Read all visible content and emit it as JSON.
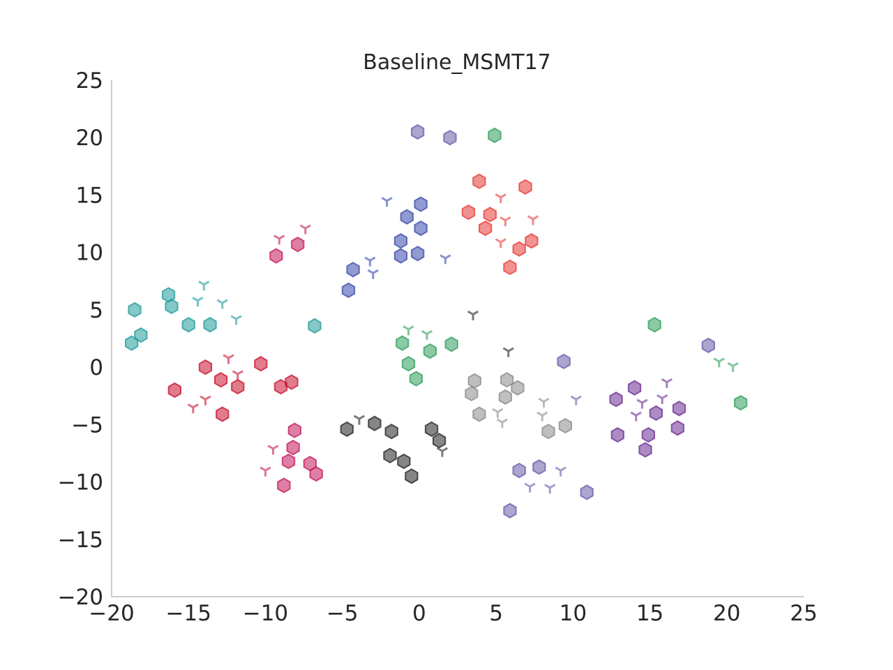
{
  "chart_data": {
    "type": "scatter",
    "title": "Baseline_MSMT17",
    "xlabel": "",
    "ylabel": "",
    "xlim": [
      -20,
      25
    ],
    "ylim": [
      -20,
      25
    ],
    "xticks": [
      "−20",
      "−15",
      "−10",
      "−5",
      "0",
      "5",
      "10",
      "15",
      "20",
      "25"
    ],
    "xtick_values": [
      -20,
      -15,
      -10,
      -5,
      0,
      5,
      10,
      15,
      20,
      25
    ],
    "yticks": [
      "25",
      "20",
      "15",
      "10",
      "5",
      "0",
      "−5",
      "−10",
      "−15",
      "−20"
    ],
    "ytick_values": [
      25,
      20,
      15,
      10,
      5,
      0,
      -5,
      -10,
      -15,
      -20
    ],
    "grid": false,
    "legend": "none",
    "marker_legend": {
      "hexagon": "hexagon marker",
      "tri": "tri_down marker"
    },
    "groups": [
      {
        "color": "#1f9a9a",
        "marker": "hexagon",
        "points": [
          [
            -18.5,
            5.0
          ],
          [
            -18.7,
            2.1
          ],
          [
            -18.1,
            2.8
          ],
          [
            -16.3,
            6.3
          ],
          [
            -16.1,
            5.3
          ],
          [
            -15.0,
            3.7
          ],
          [
            -13.6,
            3.7
          ],
          [
            -6.8,
            3.6
          ]
        ]
      },
      {
        "color": "#1f9a9a",
        "marker": "tri",
        "points": [
          [
            -14.0,
            7.2
          ],
          [
            -14.4,
            5.8
          ],
          [
            -12.8,
            5.6
          ],
          [
            -11.9,
            4.2
          ]
        ]
      },
      {
        "color": "#c8102e",
        "marker": "hexagon",
        "points": [
          [
            -15.9,
            -2.0
          ],
          [
            -13.9,
            0.0
          ],
          [
            -12.9,
            -1.1
          ],
          [
            -11.8,
            -1.7
          ],
          [
            -12.8,
            -4.1
          ],
          [
            -10.3,
            0.3
          ],
          [
            -9.0,
            -1.7
          ],
          [
            -8.3,
            -1.3
          ]
        ]
      },
      {
        "color": "#c8102e",
        "marker": "tri",
        "points": [
          [
            -12.4,
            0.8
          ],
          [
            -11.8,
            -0.6
          ],
          [
            -14.7,
            -3.5
          ],
          [
            -13.9,
            -2.8
          ]
        ]
      },
      {
        "color": "#c2185b",
        "marker": "hexagon",
        "points": [
          [
            -9.3,
            9.7
          ],
          [
            -7.9,
            10.7
          ],
          [
            -8.1,
            -5.5
          ],
          [
            -8.2,
            -7.0
          ],
          [
            -8.5,
            -8.2
          ],
          [
            -7.1,
            -8.4
          ],
          [
            -6.7,
            -9.3
          ],
          [
            -8.8,
            -10.3
          ]
        ]
      },
      {
        "color": "#c2185b",
        "marker": "tri",
        "points": [
          [
            -9.1,
            11.2
          ],
          [
            -7.4,
            12.1
          ],
          [
            -9.5,
            -7.1
          ],
          [
            -10.0,
            -9.0
          ]
        ]
      },
      {
        "color": "#3949ab",
        "marker": "hexagon",
        "points": [
          [
            0.1,
            14.2
          ],
          [
            -0.8,
            13.1
          ],
          [
            0.1,
            12.1
          ],
          [
            -1.2,
            11.0
          ],
          [
            -1.2,
            9.7
          ],
          [
            -0.1,
            9.9
          ],
          [
            -4.3,
            8.5
          ],
          [
            -4.6,
            6.7
          ]
        ]
      },
      {
        "color": "#3949ab",
        "marker": "tri",
        "points": [
          [
            -2.1,
            14.5
          ],
          [
            -3.2,
            9.3
          ],
          [
            -3.0,
            8.2
          ],
          [
            1.7,
            9.5
          ]
        ]
      },
      {
        "color": "#e53935",
        "marker": "hexagon",
        "points": [
          [
            3.9,
            16.2
          ],
          [
            6.9,
            15.7
          ],
          [
            3.2,
            13.5
          ],
          [
            4.6,
            13.3
          ],
          [
            4.3,
            12.1
          ],
          [
            6.5,
            10.3
          ],
          [
            7.3,
            11.0
          ],
          [
            5.9,
            8.7
          ]
        ]
      },
      {
        "color": "#e53935",
        "marker": "tri",
        "points": [
          [
            5.3,
            14.8
          ],
          [
            5.6,
            12.8
          ],
          [
            7.4,
            12.9
          ],
          [
            5.3,
            10.9
          ]
        ]
      },
      {
        "color": "#2e9e5b",
        "marker": "hexagon",
        "points": [
          [
            4.9,
            20.2
          ],
          [
            -1.1,
            2.1
          ],
          [
            0.7,
            1.4
          ],
          [
            2.1,
            2.0
          ],
          [
            -0.7,
            0.3
          ],
          [
            -0.2,
            -1.0
          ],
          [
            15.3,
            3.7
          ],
          [
            20.9,
            -3.1
          ]
        ]
      },
      {
        "color": "#2e9e5b",
        "marker": "tri",
        "points": [
          [
            -0.7,
            3.3
          ],
          [
            0.5,
            2.9
          ],
          [
            19.5,
            0.5
          ],
          [
            20.4,
            0.1
          ]
        ]
      },
      {
        "color": "#6a5aa8",
        "marker": "hexagon",
        "points": [
          [
            -0.1,
            20.5
          ],
          [
            2.0,
            20.0
          ],
          [
            9.4,
            0.5
          ],
          [
            18.8,
            1.9
          ],
          [
            6.5,
            -9.0
          ],
          [
            7.8,
            -8.7
          ],
          [
            10.9,
            -10.9
          ],
          [
            5.9,
            -12.5
          ]
        ]
      },
      {
        "color": "#6a5aa8",
        "marker": "tri",
        "points": [
          [
            9.2,
            -9.0
          ],
          [
            7.2,
            -10.4
          ],
          [
            8.5,
            -10.5
          ],
          [
            10.2,
            -2.8
          ]
        ]
      },
      {
        "color": "#222222",
        "marker": "hexagon",
        "points": [
          [
            -4.7,
            -5.4
          ],
          [
            -2.9,
            -4.9
          ],
          [
            -1.8,
            -5.6
          ],
          [
            0.8,
            -5.4
          ],
          [
            1.3,
            -6.4
          ],
          [
            -1.9,
            -7.7
          ],
          [
            -1.0,
            -8.2
          ],
          [
            -0.5,
            -9.5
          ]
        ]
      },
      {
        "color": "#222222",
        "marker": "tri",
        "points": [
          [
            -3.9,
            -4.5
          ],
          [
            1.5,
            -7.3
          ],
          [
            3.5,
            4.6
          ],
          [
            5.8,
            1.4
          ]
        ]
      },
      {
        "color": "#8a8a8a",
        "marker": "hexagon",
        "points": [
          [
            3.6,
            -1.2
          ],
          [
            3.4,
            -2.3
          ],
          [
            3.9,
            -4.1
          ],
          [
            5.7,
            -1.1
          ],
          [
            6.4,
            -1.8
          ],
          [
            5.6,
            -2.6
          ],
          [
            8.4,
            -5.6
          ],
          [
            9.5,
            -5.1
          ]
        ]
      },
      {
        "color": "#8a8a8a",
        "marker": "tri",
        "points": [
          [
            5.1,
            -3.9
          ],
          [
            5.4,
            -4.8
          ],
          [
            8.1,
            -3.0
          ],
          [
            8.0,
            -4.2
          ]
        ]
      },
      {
        "color": "#6a2c91",
        "marker": "hexagon",
        "points": [
          [
            14.0,
            -1.8
          ],
          [
            12.8,
            -2.8
          ],
          [
            15.4,
            -4.0
          ],
          [
            16.9,
            -3.6
          ],
          [
            12.9,
            -5.9
          ],
          [
            14.9,
            -5.9
          ],
          [
            14.7,
            -7.2
          ],
          [
            16.8,
            -5.3
          ]
        ]
      },
      {
        "color": "#6a2c91",
        "marker": "tri",
        "points": [
          [
            16.1,
            -1.3
          ],
          [
            14.5,
            -3.1
          ],
          [
            15.8,
            -2.7
          ],
          [
            14.1,
            -4.2
          ]
        ]
      }
    ]
  }
}
